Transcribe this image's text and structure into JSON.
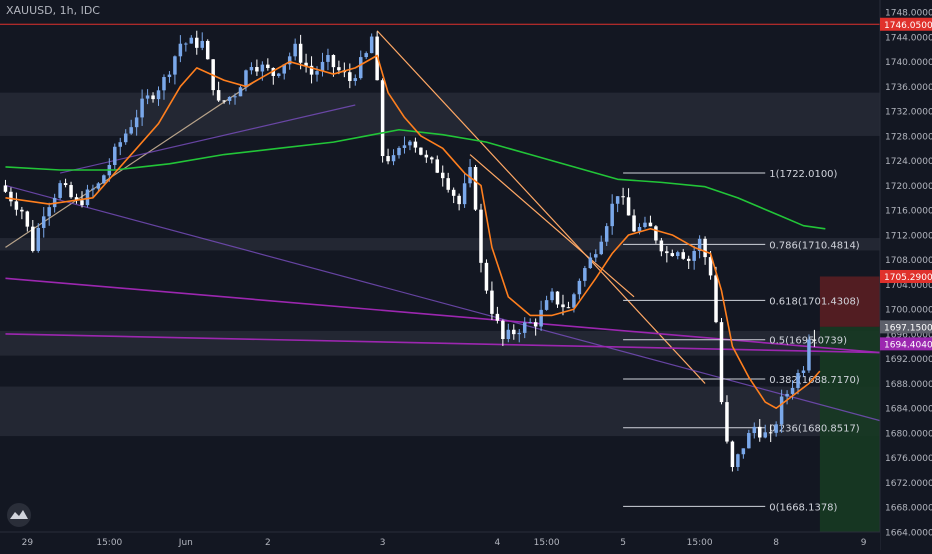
{
  "header": {
    "title": "XAUUSD, 1h, IDC"
  },
  "colors": {
    "background": "#131722",
    "zone": "#2a2e39",
    "bull": "#7aa8ea",
    "bear": "#ffffff",
    "ema_fast": "#ff7f1e",
    "ema_slow": "#22c538",
    "trend_line": "#ffa865",
    "purple": "#9c27b0",
    "violet": "#7b4fc2",
    "tan": "#b8a38a",
    "red_line": "#e0312c",
    "risk_zone": "#5a1e22",
    "reward_zone": "#173a22",
    "axis_text": "#b2b5be",
    "fib_line": "#d1d4dc"
  },
  "chart_data": {
    "type": "candlestick",
    "title": "XAUUSD, 1h, IDC",
    "ylim": [
      1664,
      1749
    ],
    "y_ticks": [
      "1748.0000",
      "1744.0000",
      "1740.0000",
      "1736.0000",
      "1732.0000",
      "1728.0000",
      "1724.0000",
      "1720.0000",
      "1716.0000",
      "1712.0000",
      "1708.0000",
      "1704.0000",
      "1700.0000",
      "1696.0000",
      "1692.0000",
      "1688.0000",
      "1684.0000",
      "1680.0000",
      "1676.0000",
      "1672.0000",
      "1668.0000",
      "1664.0000"
    ],
    "y_tick_values": [
      1748,
      1744,
      1740,
      1736,
      1732,
      1728,
      1724,
      1720,
      1716,
      1712,
      1708,
      1704,
      1700,
      1696,
      1692,
      1688,
      1684,
      1680,
      1676,
      1672,
      1668,
      1664
    ],
    "x_ticks": [
      {
        "label": "29",
        "bar": 4
      },
      {
        "label": "15:00",
        "bar": 19
      },
      {
        "label": "Jun",
        "bar": 33
      },
      {
        "label": "2",
        "bar": 48
      },
      {
        "label": "3",
        "bar": 69
      },
      {
        "label": "4",
        "bar": 90
      },
      {
        "label": "15:00",
        "bar": 99
      },
      {
        "label": "5",
        "bar": 113
      },
      {
        "label": "15:00",
        "bar": 127
      },
      {
        "label": "8",
        "bar": 141
      },
      {
        "label": "9",
        "bar": 157
      }
    ],
    "candle_anchors": [
      [
        0,
        1720
      ],
      [
        4,
        1716
      ],
      [
        6,
        1710
      ],
      [
        8,
        1716
      ],
      [
        11,
        1720
      ],
      [
        14,
        1717
      ],
      [
        18,
        1720
      ],
      [
        22,
        1727
      ],
      [
        26,
        1733
      ],
      [
        30,
        1737
      ],
      [
        33,
        1743
      ],
      [
        37,
        1743
      ],
      [
        40,
        1733
      ],
      [
        43,
        1735
      ],
      [
        46,
        1740
      ],
      [
        50,
        1738
      ],
      [
        54,
        1742
      ],
      [
        57,
        1738
      ],
      [
        60,
        1740
      ],
      [
        64,
        1737
      ],
      [
        67,
        1741
      ],
      [
        68,
        1744
      ],
      [
        69,
        1736
      ],
      [
        70,
        1725
      ],
      [
        72,
        1724
      ],
      [
        75,
        1728
      ],
      [
        78,
        1724
      ],
      [
        81,
        1722
      ],
      [
        84,
        1717
      ],
      [
        86,
        1722
      ],
      [
        87,
        1717
      ],
      [
        88,
        1707
      ],
      [
        90,
        1700
      ],
      [
        92,
        1695
      ],
      [
        95,
        1697
      ],
      [
        98,
        1698
      ],
      [
        101,
        1702
      ],
      [
        104,
        1700
      ],
      [
        106,
        1705
      ],
      [
        108,
        1708
      ],
      [
        110,
        1712
      ],
      [
        113,
        1719
      ],
      [
        116,
        1713
      ],
      [
        119,
        1713
      ],
      [
        122,
        1709
      ],
      [
        124,
        1710
      ],
      [
        126,
        1708
      ],
      [
        128,
        1711
      ],
      [
        130,
        1706
      ],
      [
        131,
        1698
      ],
      [
        132,
        1685
      ],
      [
        133,
        1678
      ],
      [
        134,
        1674
      ],
      [
        136,
        1678
      ],
      [
        138,
        1681
      ],
      [
        141,
        1679
      ],
      [
        143,
        1685
      ],
      [
        145,
        1688
      ],
      [
        147,
        1691
      ],
      [
        148,
        1696
      ]
    ],
    "ema_fast": [
      [
        0,
        1718
      ],
      [
        8,
        1717
      ],
      [
        16,
        1718
      ],
      [
        22,
        1724
      ],
      [
        28,
        1730
      ],
      [
        32,
        1736
      ],
      [
        35,
        1739
      ],
      [
        40,
        1737
      ],
      [
        44,
        1736
      ],
      [
        48,
        1738
      ],
      [
        52,
        1740
      ],
      [
        56,
        1739
      ],
      [
        60,
        1738
      ],
      [
        64,
        1739
      ],
      [
        68,
        1741
      ],
      [
        70,
        1735
      ],
      [
        73,
        1731
      ],
      [
        76,
        1728
      ],
      [
        80,
        1726
      ],
      [
        84,
        1722
      ],
      [
        87,
        1720
      ],
      [
        89,
        1710
      ],
      [
        92,
        1702
      ],
      [
        96,
        1699
      ],
      [
        100,
        1699
      ],
      [
        104,
        1700
      ],
      [
        108,
        1705
      ],
      [
        111,
        1709
      ],
      [
        114,
        1712
      ],
      [
        118,
        1713
      ],
      [
        122,
        1712
      ],
      [
        126,
        1710
      ],
      [
        129,
        1709
      ],
      [
        131,
        1703
      ],
      [
        133,
        1694
      ],
      [
        136,
        1689
      ],
      [
        139,
        1685
      ],
      [
        141,
        1684
      ],
      [
        144,
        1686
      ],
      [
        147,
        1688
      ],
      [
        149,
        1690
      ]
    ],
    "ema_slow": [
      [
        0,
        1723
      ],
      [
        10,
        1722.5
      ],
      [
        20,
        1722.5
      ],
      [
        30,
        1723.5
      ],
      [
        40,
        1725
      ],
      [
        50,
        1726
      ],
      [
        60,
        1727
      ],
      [
        66,
        1728
      ],
      [
        72,
        1729
      ],
      [
        80,
        1728.2
      ],
      [
        88,
        1727
      ],
      [
        96,
        1725
      ],
      [
        104,
        1723
      ],
      [
        112,
        1721
      ],
      [
        120,
        1720.5
      ],
      [
        128,
        1719.8
      ],
      [
        134,
        1718
      ],
      [
        138,
        1716.5
      ],
      [
        142,
        1715
      ],
      [
        146,
        1713.5
      ],
      [
        150,
        1713
      ]
    ],
    "fib_levels": [
      {
        "ratio": "1",
        "price": 1722.01,
        "label": "1(1722.0100)"
      },
      {
        "ratio": "0.786",
        "price": 1710.4814,
        "label": "0.786(1710.4814)"
      },
      {
        "ratio": "0.618",
        "price": 1701.4308,
        "label": "0.618(1701.4308)"
      },
      {
        "ratio": "0.5",
        "price": 1695.0739,
        "label": "0.5(1695.0739)"
      },
      {
        "ratio": "0.382",
        "price": 1688.717,
        "label": "0.382(1688.7170)"
      },
      {
        "ratio": "0.236",
        "price": 1680.8517,
        "label": "0.236(1680.8517)"
      },
      {
        "ratio": "0",
        "price": 1668.1378,
        "label": "0(1668.1378)"
      }
    ],
    "fib_bars": [
      113,
      139
    ],
    "zones": [
      [
        1728,
        1735
      ],
      [
        1709.5,
        1711.5
      ],
      [
        1692.5,
        1696.5
      ],
      [
        1679.5,
        1687.5
      ]
    ],
    "horizontal_line": 1746.05,
    "trend_lines": [
      {
        "kind": "orange",
        "points": [
          [
            68,
            1745
          ],
          [
            128,
            1688
          ]
        ]
      },
      {
        "kind": "orange",
        "points": [
          [
            85,
            1725
          ],
          [
            115,
            1702
          ]
        ]
      },
      {
        "kind": "tan",
        "points": [
          [
            0,
            1710
          ],
          [
            46,
            1737
          ]
        ]
      },
      {
        "kind": "violet",
        "points": [
          [
            0,
            1720
          ],
          [
            160,
            1682
          ]
        ]
      },
      {
        "kind": "violet",
        "points": [
          [
            10,
            1722
          ],
          [
            64,
            1733
          ]
        ]
      },
      {
        "kind": "purple",
        "points": [
          [
            0,
            1705
          ],
          [
            160,
            1693
          ]
        ]
      },
      {
        "kind": "purple",
        "points": [
          [
            0,
            1696
          ],
          [
            160,
            1693
          ]
        ]
      }
    ],
    "position": {
      "bar_start": 149,
      "bar_end": 160,
      "entry": 1697.15,
      "stop": 1705.29,
      "target": 1663
    },
    "price_tags": [
      {
        "label": "1746.0500",
        "price": 1746.05,
        "color": "#e0312c"
      },
      {
        "label": "1705.2900",
        "price": 1705.29,
        "color": "#e0312c"
      },
      {
        "label": "1697.1500",
        "price": 1697.15,
        "color": "#5d606b"
      },
      {
        "label": "1694.4040",
        "price": 1694.404,
        "color": "#9c27b0"
      }
    ],
    "x_range": [
      -1,
      160
    ]
  }
}
